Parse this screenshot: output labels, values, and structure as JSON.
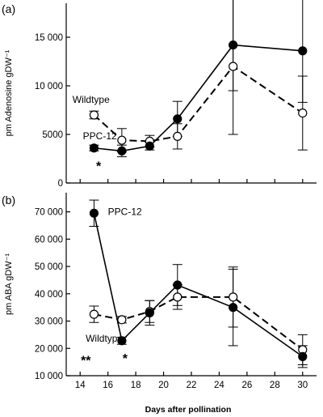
{
  "chart_data": [
    {
      "type": "line",
      "panel_label": "(a)",
      "ylabel": "pm Adenosine gDW⁻¹",
      "xlabel": "",
      "xlim": [
        13,
        31
      ],
      "ylim": [
        0,
        18500
      ],
      "y_ticks": [
        0,
        5000,
        10000,
        15000
      ],
      "y_tick_labels": [
        "0",
        "5000",
        "10 000",
        "15 000"
      ],
      "x_ticks": [
        14,
        16,
        18,
        20,
        22,
        24,
        26,
        28,
        30
      ],
      "series": [
        {
          "name": "Wildtype",
          "marker": "open-circle",
          "line": "dashed",
          "x": [
            15,
            17,
            19,
            21,
            25,
            30
          ],
          "y": [
            7000,
            4400,
            4300,
            4800,
            12000,
            7200
          ],
          "err": [
            400,
            1200,
            600,
            1300,
            7000,
            3800
          ]
        },
        {
          "name": "PPC-12",
          "marker": "filled-circle",
          "line": "solid",
          "x": [
            15,
            17,
            19,
            21,
            25,
            30
          ],
          "y": [
            3600,
            3300,
            3800,
            6600,
            14200,
            13600
          ],
          "err": [
            300,
            600,
            400,
            1800,
            4700,
            5300
          ]
        }
      ],
      "annotations": [
        {
          "text": "Wildtype",
          "x": 13.45,
          "y": 8250
        },
        {
          "text": "PPC-12",
          "x": 14.2,
          "y": 4500
        },
        {
          "text": "*",
          "x": 15.15,
          "y": 1300
        }
      ]
    },
    {
      "type": "line",
      "panel_label": "(b)",
      "ylabel": "pm ABA gDW⁻¹",
      "xlabel": "Days after pollination",
      "xlim": [
        13,
        31
      ],
      "ylim": [
        10000,
        77000
      ],
      "y_ticks": [
        10000,
        20000,
        30000,
        40000,
        50000,
        60000,
        70000
      ],
      "y_tick_labels": [
        "10 000",
        "20 000",
        "30 000",
        "40 000",
        "50 000",
        "60 000",
        "70 000"
      ],
      "x_ticks": [
        14,
        16,
        18,
        20,
        22,
        24,
        26,
        28,
        30
      ],
      "x_tick_labels": [
        "14",
        "16",
        "18",
        "20",
        "22",
        "24",
        "26",
        "28",
        "30"
      ],
      "series": [
        {
          "name": "Wildtype",
          "marker": "open-circle",
          "line": "dashed",
          "x": [
            15,
            17,
            19,
            21,
            25,
            30
          ],
          "y": [
            32500,
            30500,
            33500,
            38800,
            38800,
            19500
          ],
          "err": [
            3000,
            1200,
            4000,
            4500,
            11000,
            5500
          ]
        },
        {
          "name": "PPC-12",
          "marker": "filled-circle",
          "line": "solid",
          "x": [
            15,
            17,
            19,
            21,
            25,
            30
          ],
          "y": [
            69500,
            22800,
            33000,
            43200,
            35000,
            17000
          ],
          "err": [
            4800,
            1300,
            4500,
            7500,
            14000,
            4000
          ]
        }
      ],
      "annotations": [
        {
          "text": "PPC-12",
          "x": 16.0,
          "y": 68800
        },
        {
          "text": "Wildtype",
          "x": 14.4,
          "y": 22500
        },
        {
          "text": "**",
          "x": 14.05,
          "y": 14000
        },
        {
          "text": "*",
          "x": 17.05,
          "y": 14700
        }
      ]
    }
  ]
}
